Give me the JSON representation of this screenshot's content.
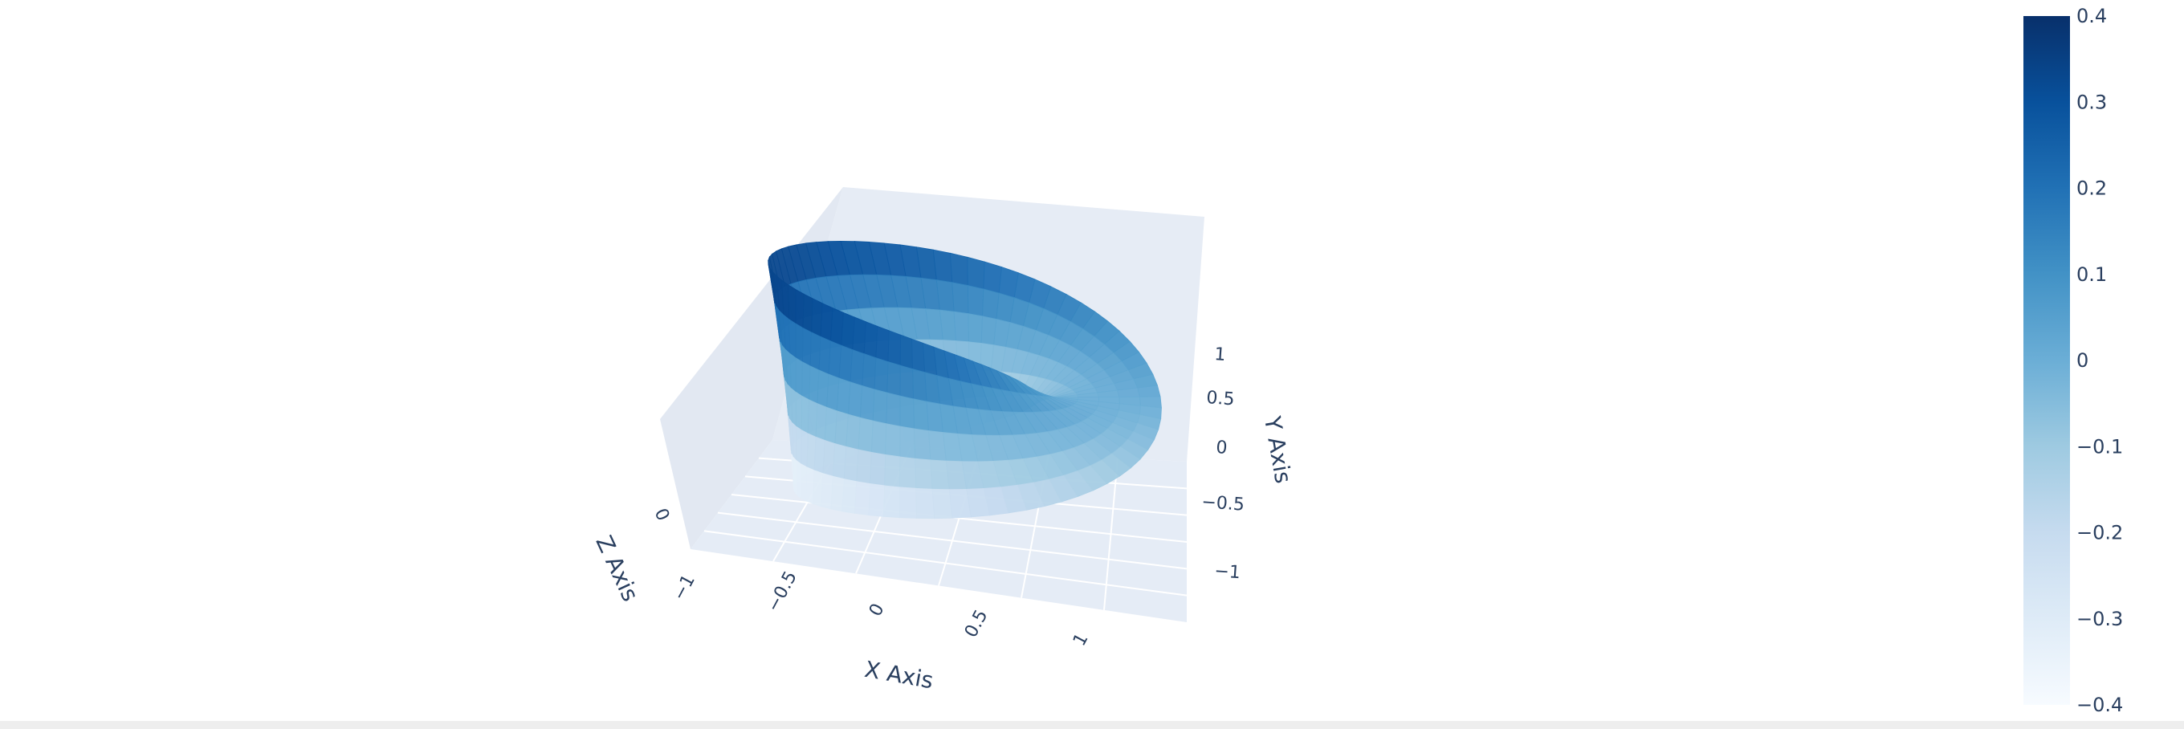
{
  "chart_data": {
    "type": "surface",
    "title": "",
    "scene": {
      "xaxis": {
        "title": "X Axis",
        "range": [
          -1.5,
          1.5
        ],
        "ticks": [
          -1,
          -0.5,
          0,
          0.5,
          1
        ],
        "tick_labels": [
          "−1",
          "−0.5",
          "0",
          "0.5",
          "1"
        ]
      },
      "yaxis": {
        "title": "Y Axis",
        "range": [
          -1.5,
          1.5
        ],
        "ticks": [
          -1,
          -0.5,
          0,
          0.5,
          1
        ],
        "tick_labels": [
          "−1",
          "−0.5",
          "0",
          "0.5",
          "1"
        ]
      },
      "zaxis": {
        "title": "Z Axis",
        "range": [
          -0.5,
          0.5
        ],
        "ticks": [
          0
        ],
        "tick_labels": [
          "0"
        ]
      },
      "grid": true,
      "background": "#e5ecf6"
    },
    "surface": {
      "shape": "mobius-strip",
      "center_radius": 1,
      "half_width": 0.4,
      "color_by": "z"
    },
    "colorbar": {
      "colorscale": "Blues",
      "cmin": -0.4,
      "cmax": 0.4,
      "ticks": [
        0.4,
        0.3,
        0.2,
        0.1,
        0,
        -0.1,
        -0.2,
        -0.3,
        -0.4
      ],
      "tick_labels": [
        "0.4",
        "0.3",
        "0.2",
        "0.1",
        "0",
        "−0.1",
        "−0.2",
        "−0.3",
        "−0.4"
      ],
      "colors": [
        "#f7fbff",
        "#deebf7",
        "#c6dbef",
        "#9ecae1",
        "#6baed6",
        "#4292c6",
        "#2171b5",
        "#08519c",
        "#08306b"
      ],
      "position": "right"
    }
  }
}
